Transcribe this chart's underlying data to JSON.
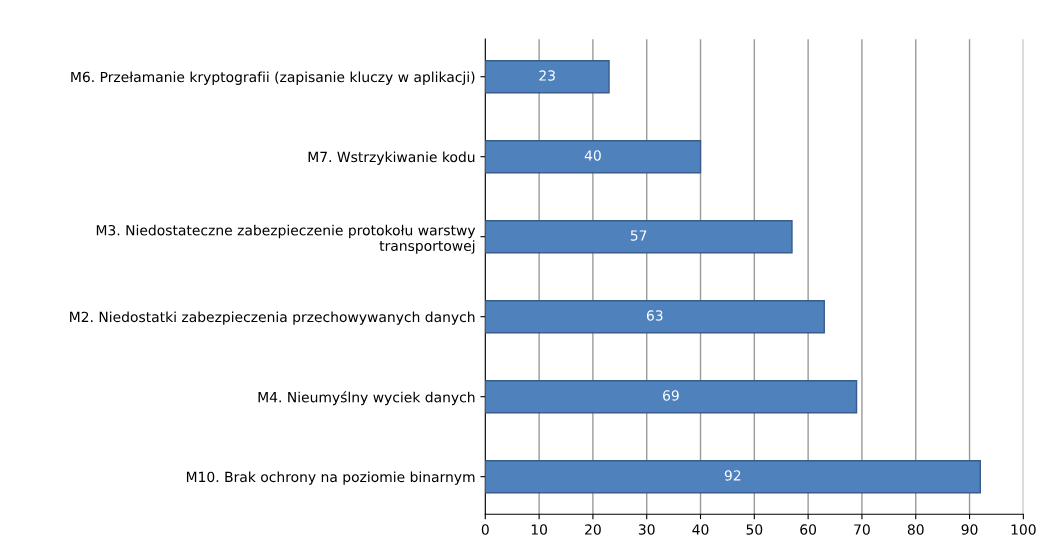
{
  "chart_data": {
    "type": "bar",
    "orientation": "horizontal",
    "categories": [
      "M6. Przełamanie kryptografii (zapisanie kluczy w aplikacji)",
      "M7. Wstrzykiwanie kodu",
      "M3. Niedostateczne zabezpieczenie protokołu warstwy\ntransportowej",
      "M2. Niedostatki zabezpieczenia przechowywanych danych",
      "M4. Nieumyślny wyciek danych",
      "M10. Brak ochrony na poziomie binarnym"
    ],
    "values": [
      23,
      40,
      57,
      63,
      69,
      92
    ],
    "color": "#4f81bd",
    "data_labels": true,
    "xlim": [
      0,
      100
    ],
    "xticks": [
      0,
      10,
      20,
      30,
      40,
      50,
      60,
      70,
      80,
      90,
      100
    ],
    "grid": "x",
    "legend": false
  }
}
